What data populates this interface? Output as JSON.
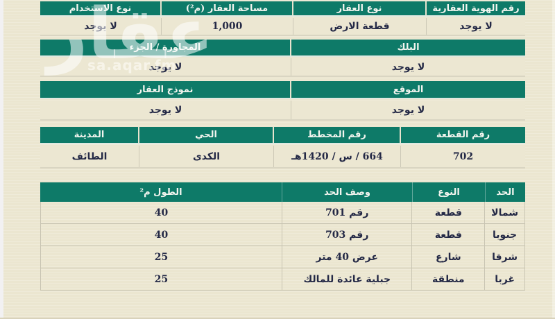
{
  "watermark": {
    "logo": "عقار",
    "site": "sa.aqar.fm"
  },
  "colors": {
    "header_green": "#0e7a68",
    "page_cream": "#ebe6d0",
    "ink": "#242946",
    "header_text": "#f3f5ef"
  },
  "sections": [
    {
      "name": "property-identity",
      "fields": [
        {
          "label": "رقم الهوية العقارية",
          "value": "لا يوجد"
        },
        {
          "label": "نوع العقار",
          "value": "قطعة الارض"
        },
        {
          "label": "مساحة العقار (م²)",
          "value": "1,000"
        },
        {
          "label": "نوع الاستخدام",
          "value": "لا يوجد"
        }
      ]
    },
    {
      "name": "block-neighborhood",
      "fields": [
        {
          "label": "البلك",
          "value": "لا يوجد"
        },
        {
          "label": "المجاورة / الجزء",
          "value": "لا يوجد"
        }
      ]
    },
    {
      "name": "location-model",
      "fields": [
        {
          "label": "الموقع",
          "value": "لا يوجد"
        },
        {
          "label": "نموذج العقار",
          "value": "لا يوجد"
        }
      ]
    },
    {
      "name": "plan-city",
      "fields": [
        {
          "label": "رقم القطعة",
          "value": "702"
        },
        {
          "label": "رقم المخطط",
          "value": "664 / س / 1420هـ"
        },
        {
          "label": "الحي",
          "value": "الكدى"
        },
        {
          "label": "المدينة",
          "value": "الطائف"
        }
      ]
    }
  ],
  "boundaries": {
    "headers": {
      "side": "الحد",
      "type": "النوع",
      "description": "وصف الحد",
      "length": "الطول م²"
    },
    "rows": [
      {
        "side": "شمالا",
        "type": "قطعة",
        "description": "رقم 701",
        "length": "40"
      },
      {
        "side": "جنوبا",
        "type": "قطعة",
        "description": "رقم 703",
        "length": "40"
      },
      {
        "side": "شرقا",
        "type": "شارع",
        "description": "عرض 40 متر",
        "length": "25"
      },
      {
        "side": "غربا",
        "type": "منطقة",
        "description": "جبلية عائدة للمالك",
        "length": "25"
      }
    ]
  }
}
